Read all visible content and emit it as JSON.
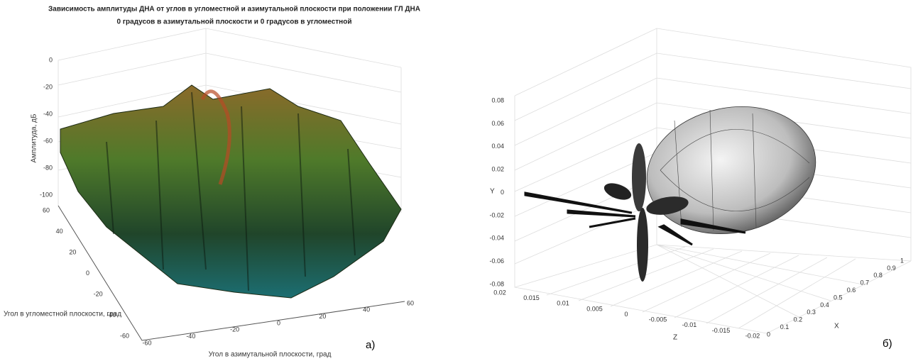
{
  "panel_a": {
    "title": [
      "Зависимость амплитуды ДНА от углов в угломестной и азимутальной плоскости при положении ГЛ ДНА",
      "0 градусов в азимутальной плоскости и 0 градусов в угломестной"
    ],
    "z_label": "Амплитуда, дБ",
    "z_ticks": [
      "0",
      "-20",
      "-40",
      "-60",
      "-80",
      "-100"
    ],
    "y_label": "Угол в угломестной плоскости, град",
    "y_ticks": [
      "60",
      "40",
      "20",
      "0",
      "-20",
      "-40",
      "-60"
    ],
    "x_label": "Угол в азимутальной плоскости, град",
    "x_ticks": [
      "-60",
      "-40",
      "-20",
      "0",
      "20",
      "40",
      "60"
    ],
    "panel_label": "а)"
  },
  "panel_b": {
    "y_label": "Y",
    "y_ticks": [
      "0.08",
      "0.06",
      "0.04",
      "0.02",
      "0",
      "-0.02",
      "-0.04",
      "-0.06",
      "-0.08"
    ],
    "z_label": "Z",
    "z_ticks": [
      "0.02",
      "0.015",
      "0.01",
      "0.005",
      "0",
      "-0.005",
      "-0.01",
      "-0.015",
      "-0.02"
    ],
    "x_label": "X",
    "x_ticks": [
      "0",
      "0.1",
      "0.2",
      "0.3",
      "0.4",
      "0.5",
      "0.6",
      "0.7",
      "0.8",
      "0.9",
      "1"
    ],
    "panel_label": "б)"
  }
}
